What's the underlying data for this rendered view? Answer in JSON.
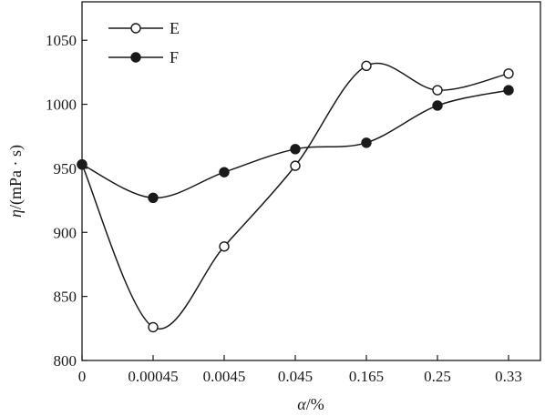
{
  "chart_data": {
    "type": "line",
    "categories": [
      "0",
      "0.00045",
      "0.0045",
      "0.045",
      "0.165",
      "0.25",
      "0.33"
    ],
    "series": [
      {
        "name": "E",
        "marker": "open-circle",
        "values": [
          953,
          826,
          889,
          952,
          1030,
          1011,
          1024
        ]
      },
      {
        "name": "F",
        "marker": "filled-circle",
        "values": [
          953,
          927,
          947,
          965,
          970,
          999,
          1011
        ]
      }
    ],
    "xlabel_symbol": "α",
    "xlabel_unit": "/%",
    "ylabel_symbol": "η",
    "ylabel_unit": "/(mPa · s)",
    "ylim": [
      800,
      1080
    ],
    "yticks": [
      800,
      850,
      900,
      950,
      1000,
      1050
    ],
    "ytick_labels": [
      "800",
      "850",
      "900",
      "950",
      "1000",
      "1050"
    ],
    "grid": false,
    "legend_position": "top-left",
    "colors": {
      "line": "#1a1a1a",
      "axis": "#1a1a1a",
      "open_fill": "#ffffff"
    }
  }
}
